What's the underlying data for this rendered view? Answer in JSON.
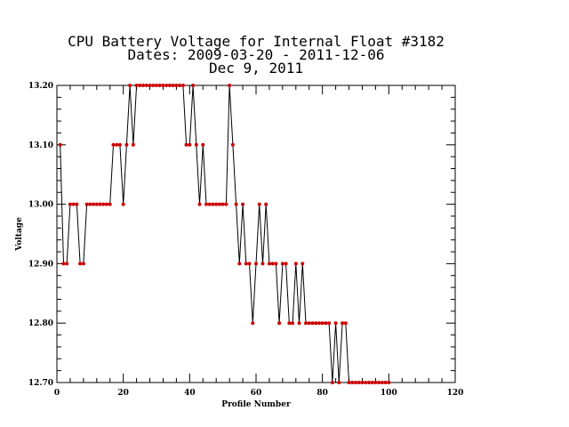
{
  "chart_data": {
    "type": "line",
    "title_lines": [
      "CPU Battery Voltage for Internal Float #3182",
      "Dates:  2009-03-20 -  2011-12-06",
      "Dec  9, 2011"
    ],
    "xlabel": "Profile Number",
    "ylabel": "Voltage",
    "xlim": [
      0,
      120
    ],
    "ylim": [
      12.7,
      13.2
    ],
    "xticks": [
      0,
      20,
      40,
      60,
      80,
      100,
      120
    ],
    "xtick_labels": [
      "0",
      "20",
      "40",
      "60",
      "80",
      "100",
      "120"
    ],
    "yticks": [
      12.7,
      12.8,
      12.9,
      13.0,
      13.1,
      13.2
    ],
    "ytick_labels": [
      "12.70",
      "12.80",
      "12.90",
      "13.00",
      "13.10",
      "13.20"
    ],
    "line_color": "#000000",
    "marker_color": "#cc0000",
    "series": [
      {
        "x": [
          1,
          2,
          3,
          4,
          5,
          6,
          7,
          8,
          9,
          10,
          11,
          12,
          13,
          14,
          15,
          16,
          17,
          18,
          19,
          20,
          21,
          22,
          23,
          24,
          25,
          26,
          27,
          28,
          29,
          30,
          31,
          32,
          33,
          34,
          35,
          36,
          37,
          38,
          39,
          40,
          41,
          42,
          43,
          44,
          45,
          46,
          47,
          48,
          49,
          50,
          51,
          52,
          53,
          54,
          55,
          56,
          57,
          58,
          59,
          60,
          61,
          62,
          63,
          64,
          65,
          66,
          67,
          68,
          69,
          70,
          71,
          72,
          73,
          74,
          75,
          76,
          77,
          78,
          79,
          80,
          81,
          82,
          83,
          84,
          85,
          86,
          87,
          88,
          89,
          90,
          91,
          92,
          93,
          94,
          95,
          96,
          97,
          98,
          99,
          100
        ],
        "y": [
          13.1,
          12.9,
          12.9,
          13.0,
          13.0,
          13.0,
          12.9,
          12.9,
          13.0,
          13.0,
          13.0,
          13.0,
          13.0,
          13.0,
          13.0,
          13.0,
          13.1,
          13.1,
          13.1,
          13.0,
          13.1,
          13.2,
          13.1,
          13.2,
          13.2,
          13.2,
          13.2,
          13.2,
          13.2,
          13.2,
          13.2,
          13.2,
          13.2,
          13.2,
          13.2,
          13.2,
          13.2,
          13.2,
          13.1,
          13.1,
          13.2,
          13.1,
          13.0,
          13.1,
          13.0,
          13.0,
          13.0,
          13.0,
          13.0,
          13.0,
          13.0,
          13.2,
          13.1,
          13.0,
          12.9,
          13.0,
          12.9,
          12.9,
          12.8,
          12.9,
          13.0,
          12.9,
          13.0,
          12.9,
          12.9,
          12.9,
          12.8,
          12.9,
          12.9,
          12.8,
          12.8,
          12.9,
          12.8,
          12.9,
          12.8,
          12.8,
          12.8,
          12.8,
          12.8,
          12.8,
          12.8,
          12.8,
          12.7,
          12.8,
          12.7,
          12.8,
          12.8,
          12.7,
          12.7,
          12.7,
          12.7,
          12.7,
          12.7,
          12.7,
          12.7,
          12.7,
          12.7,
          12.7,
          12.7,
          12.7
        ]
      }
    ]
  }
}
